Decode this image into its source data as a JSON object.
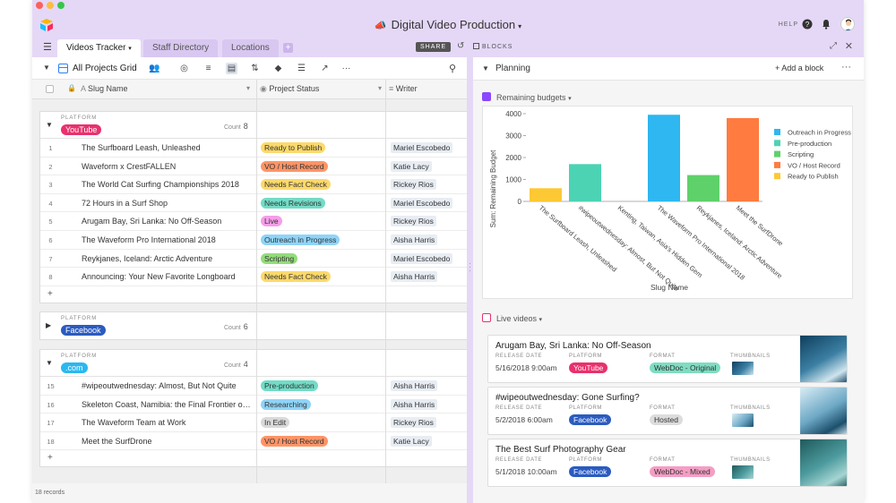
{
  "app": {
    "title": "Digital Video Production",
    "help_label": "HELP"
  },
  "tabs": [
    {
      "label": "Videos Tracker",
      "active": true
    },
    {
      "label": "Staff Directory",
      "active": false
    },
    {
      "label": "Locations",
      "active": false
    }
  ],
  "toolbar": {
    "share_label": "SHARE",
    "blocks_label": "BLOCKS",
    "view_name": "All Projects Grid"
  },
  "columns": {
    "slug": "Slug Name",
    "status": "Project Status",
    "writer": "Writer"
  },
  "groups": [
    {
      "label": "PLATFORM",
      "name": "YouTube",
      "color": "#e8316d",
      "count_label": "Count",
      "count": "8",
      "rows": [
        {
          "num": "1",
          "slug": "The Surfboard Leash, Unleashed",
          "status": "Ready to Publish",
          "status_color": "#fcd96b",
          "writer": "Mariel Escobedo"
        },
        {
          "num": "2",
          "slug": "Waveform x CrestFALLEN",
          "status": "VO / Host Record",
          "status_color": "#ff9466",
          "writer": "Katie Lacy"
        },
        {
          "num": "3",
          "slug": "The World Cat Surfing Championships 2018",
          "status": "Needs Fact Check",
          "status_color": "#fcd96b",
          "writer": "Rickey Rios"
        },
        {
          "num": "4",
          "slug": "72 Hours in a Surf Shop",
          "status": "Needs Revisions",
          "status_color": "#72dcc6",
          "writer": "Mariel Escobedo"
        },
        {
          "num": "5",
          "slug": "Arugam Bay, Sri Lanka: No Off-Season",
          "status": "Live",
          "status_color": "#f59ee8",
          "writer": "Rickey Rios"
        },
        {
          "num": "6",
          "slug": "The Waveform Pro International 2018",
          "status": "Outreach in Progress",
          "status_color": "#8fd4f8",
          "writer": "Aisha Harris"
        },
        {
          "num": "7",
          "slug": "Reykjanes, Iceland: Arctic Adventure",
          "status": "Scripting",
          "status_color": "#93dc7a",
          "writer": "Mariel Escobedo"
        },
        {
          "num": "8",
          "slug": "Announcing: Your New Favorite Longboard",
          "status": "Needs Fact Check",
          "status_color": "#fcd96b",
          "writer": "Aisha Harris"
        }
      ]
    },
    {
      "label": "PLATFORM",
      "name": "Facebook",
      "color": "#2b5bbf",
      "count_label": "Count",
      "count": "6",
      "rows": []
    },
    {
      "label": "PLATFORM",
      "name": ".com",
      "color": "#2ab8f0",
      "count_label": "Count",
      "count": "4",
      "rows": [
        {
          "num": "15",
          "slug": "#wipeoutwednesday: Almost, But Not Quite",
          "status": "Pre-production",
          "status_color": "#72dcc6",
          "writer": "Aisha Harris"
        },
        {
          "num": "16",
          "slug": "Skeleton Coast, Namibia: the Final Frontier of …",
          "status": "Researching",
          "status_color": "#8fd4f8",
          "writer": "Aisha Harris"
        },
        {
          "num": "17",
          "slug": "The Waveform Team at Work",
          "status": "In Edit",
          "status_color": "#d9d9d9",
          "writer": "Rickey Rios"
        },
        {
          "num": "18",
          "slug": "Meet the SurfDrone",
          "status": "VO / Host Record",
          "status_color": "#ff9466",
          "writer": "Katie Lacy"
        }
      ]
    }
  ],
  "footer": {
    "records": "18 records"
  },
  "blocks": {
    "header_title": "Planning",
    "add_block": "Add a block",
    "chart_block_title": "Remaining budgets",
    "list_block_title": "Live videos"
  },
  "chart_data": {
    "type": "bar",
    "xlabel": "Slug Name",
    "ylabel": "Sum: Remaining Budget",
    "ylim": [
      0,
      4000
    ],
    "yticks": [
      "0",
      "1000",
      "2000",
      "3000",
      "4000"
    ],
    "categories": [
      "The Surfboard Leash, Unleashed",
      "#wipeoutwednesday: Almost, But Not Quite",
      "Kenting, Taiwan, Asia's Hidden Gem",
      "The Waveform Pro International 2018",
      "Reykjanes, Iceland: Arctic Adventure",
      "Meet the SurfDrone"
    ],
    "values": [
      600,
      1700,
      0,
      3950,
      1200,
      3800
    ],
    "bar_colors": [
      "#fcc934",
      "#4cd3b4",
      "#4cd3b4",
      "#2eb7f0",
      "#5fd16a",
      "#ff7b3f"
    ],
    "legend": [
      {
        "name": "Outreach in Progress",
        "color": "#2eb7f0"
      },
      {
        "name": "Pre-production",
        "color": "#4cd3b4"
      },
      {
        "name": "Scripting",
        "color": "#5fd16a"
      },
      {
        "name": "VO / Host Record",
        "color": "#ff7b3f"
      },
      {
        "name": "Ready to Publish",
        "color": "#fcc934"
      }
    ],
    "legend_position": "right"
  },
  "videos": [
    {
      "title": "Arugam Bay, Sri Lanka: No Off-Season",
      "release_label": "RELEASE DATE",
      "platform_label": "PLATFORM",
      "format_label": "FORMAT",
      "thumb_label": "THUMBNAILS",
      "date": "5/16/2018 9:00am",
      "platform": "YouTube",
      "platform_color": "#e8316d",
      "format": "WebDoc - Original",
      "format_color": "#7fdcc2"
    },
    {
      "title": "#wipeoutwednesday: Gone Surfing?",
      "release_label": "RELEASE DATE",
      "platform_label": "PLATFORM",
      "format_label": "FORMAT",
      "thumb_label": "THUMBNAILS",
      "date": "5/2/2018 6:00am",
      "platform": "Facebook",
      "platform_color": "#2b5bbf",
      "format": "Hosted",
      "format_color": "#dcdcdc"
    },
    {
      "title": "The Best Surf Photography Gear",
      "release_label": "RELEASE DATE",
      "platform_label": "PLATFORM",
      "format_label": "FORMAT",
      "thumb_label": "THUMBNAILS",
      "date": "5/1/2018 10:00am",
      "platform": "Facebook",
      "platform_color": "#2b5bbf",
      "format": "WebDoc - Mixed",
      "format_color": "#f49ec4"
    }
  ]
}
